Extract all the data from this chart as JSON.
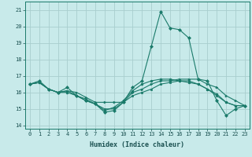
{
  "xlabel": "Humidex (Indice chaleur)",
  "ylabel": "",
  "background_color": "#c8eaea",
  "grid_color": "#a8cece",
  "line_color": "#1a7a6a",
  "xlim": [
    -0.5,
    23.5
  ],
  "ylim": [
    13.8,
    21.5
  ],
  "yticks": [
    14,
    15,
    16,
    17,
    18,
    19,
    20,
    21
  ],
  "xticks": [
    0,
    1,
    2,
    3,
    4,
    5,
    6,
    7,
    8,
    9,
    10,
    11,
    12,
    13,
    14,
    15,
    16,
    17,
    18,
    19,
    20,
    21,
    22,
    23
  ],
  "lines": [
    {
      "x": [
        0,
        1,
        2,
        3,
        4,
        5,
        6,
        7,
        8,
        9,
        10,
        11,
        12,
        13,
        14,
        15,
        16,
        17,
        18,
        19,
        20,
        21,
        22,
        23
      ],
      "y": [
        16.5,
        16.7,
        16.2,
        16.0,
        16.3,
        15.8,
        15.5,
        15.3,
        14.8,
        14.9,
        15.4,
        16.3,
        16.7,
        18.8,
        20.9,
        19.9,
        19.8,
        19.3,
        16.8,
        16.7,
        15.5,
        14.6,
        15.0,
        15.2
      ]
    },
    {
      "x": [
        0,
        1,
        2,
        3,
        4,
        5,
        6,
        7,
        8,
        9,
        10,
        11,
        12,
        13,
        14,
        15,
        16,
        17,
        18,
        19,
        20,
        21,
        22,
        23
      ],
      "y": [
        16.5,
        16.6,
        16.2,
        16.0,
        16.1,
        16.0,
        15.7,
        15.4,
        15.4,
        15.4,
        15.4,
        16.0,
        16.2,
        16.5,
        16.7,
        16.7,
        16.8,
        16.8,
        16.8,
        16.5,
        16.3,
        15.8,
        15.5,
        15.2
      ]
    },
    {
      "x": [
        0,
        1,
        2,
        3,
        4,
        5,
        6,
        7,
        8,
        9,
        10,
        11,
        12,
        13,
        14,
        15,
        16,
        17,
        18,
        19,
        20,
        21,
        22,
        23
      ],
      "y": [
        16.5,
        16.6,
        16.2,
        16.0,
        16.1,
        15.8,
        15.6,
        15.3,
        15.0,
        15.0,
        15.4,
        15.8,
        16.0,
        16.2,
        16.5,
        16.6,
        16.7,
        16.7,
        16.5,
        16.2,
        15.8,
        15.4,
        15.2,
        15.2
      ]
    },
    {
      "x": [
        0,
        1,
        2,
        3,
        4,
        5,
        6,
        7,
        8,
        9,
        10,
        11,
        12,
        13,
        14,
        15,
        16,
        17,
        18,
        19,
        20,
        21,
        22,
        23
      ],
      "y": [
        16.5,
        16.6,
        16.2,
        16.0,
        16.0,
        15.8,
        15.5,
        15.3,
        14.9,
        15.1,
        15.5,
        16.1,
        16.5,
        16.7,
        16.8,
        16.8,
        16.7,
        16.6,
        16.5,
        16.2,
        15.9,
        15.4,
        15.2,
        15.2
      ]
    }
  ],
  "markers": [
    "D",
    ">",
    "s",
    "o"
  ],
  "tick_fontsize": 5.0,
  "xlabel_fontsize": 6.0
}
